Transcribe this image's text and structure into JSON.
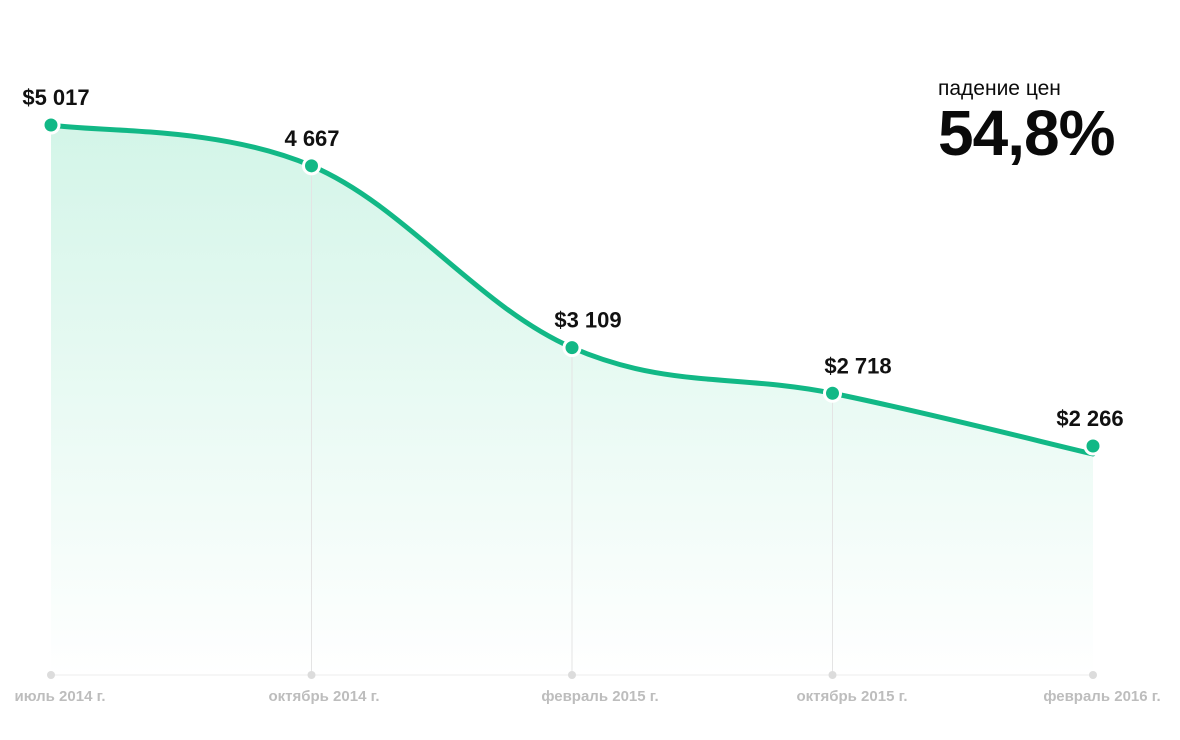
{
  "callout": {
    "caption": "падение цен",
    "value": "54,8%"
  },
  "colors": {
    "line": "#12b886",
    "fill_top": "#d3f5e8",
    "fill_bottom": "#ffffff",
    "gridline": "#e4e4e4",
    "tick_dot": "#dcdcdc",
    "tick_text": "#bdbdbd",
    "value_text": "#111111"
  },
  "chart_data": {
    "type": "area",
    "title": "",
    "xlabel": "",
    "ylabel": "",
    "categories": [
      "июль 2014 г.",
      "октябрь 2014 г.",
      "февраль 2015 г.",
      "октябрь 2015 г.",
      "февраль 2016 г."
    ],
    "values": [
      5017,
      4667,
      3109,
      2718,
      2266
    ],
    "data_labels": [
      "$5 017",
      "4 667",
      "$3 109",
      "$2 718",
      "$2 266"
    ],
    "ylim": [
      0,
      6000
    ],
    "grid": false,
    "legend": "none"
  }
}
